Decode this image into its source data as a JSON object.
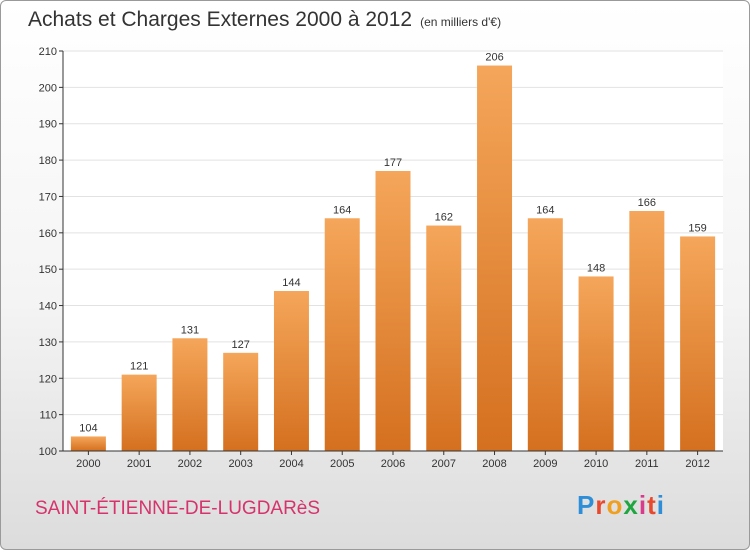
{
  "title": "Achats et Charges Externes 2000 à 2012",
  "unit_note": "(en milliers d'€)",
  "place_name": "SAINT-ÉTIENNE-DE-LUGDARèS",
  "logo": {
    "text": "Proxiti",
    "letter_colors": [
      "#2e8fd8",
      "#e8492e",
      "#f0a020",
      "#1fa640",
      "#d93a8c",
      "#e8492e",
      "#2e8fd8"
    ]
  },
  "colors": {
    "bar_top": "#f5a65a",
    "bar_bottom": "#d4701f",
    "grid": "#e2e2e2",
    "axis": "#333333"
  },
  "chart_data": {
    "type": "bar",
    "categories": [
      "2000",
      "2001",
      "2002",
      "2003",
      "2004",
      "2005",
      "2006",
      "2007",
      "2008",
      "2009",
      "2010",
      "2011",
      "2012"
    ],
    "values": [
      104,
      121,
      131,
      127,
      144,
      164,
      177,
      162,
      206,
      164,
      148,
      166,
      159
    ],
    "ylim": [
      100,
      210
    ],
    "yticks": [
      100,
      110,
      120,
      130,
      140,
      150,
      160,
      170,
      180,
      190,
      200,
      210
    ],
    "grid": true,
    "data_labels": true
  }
}
